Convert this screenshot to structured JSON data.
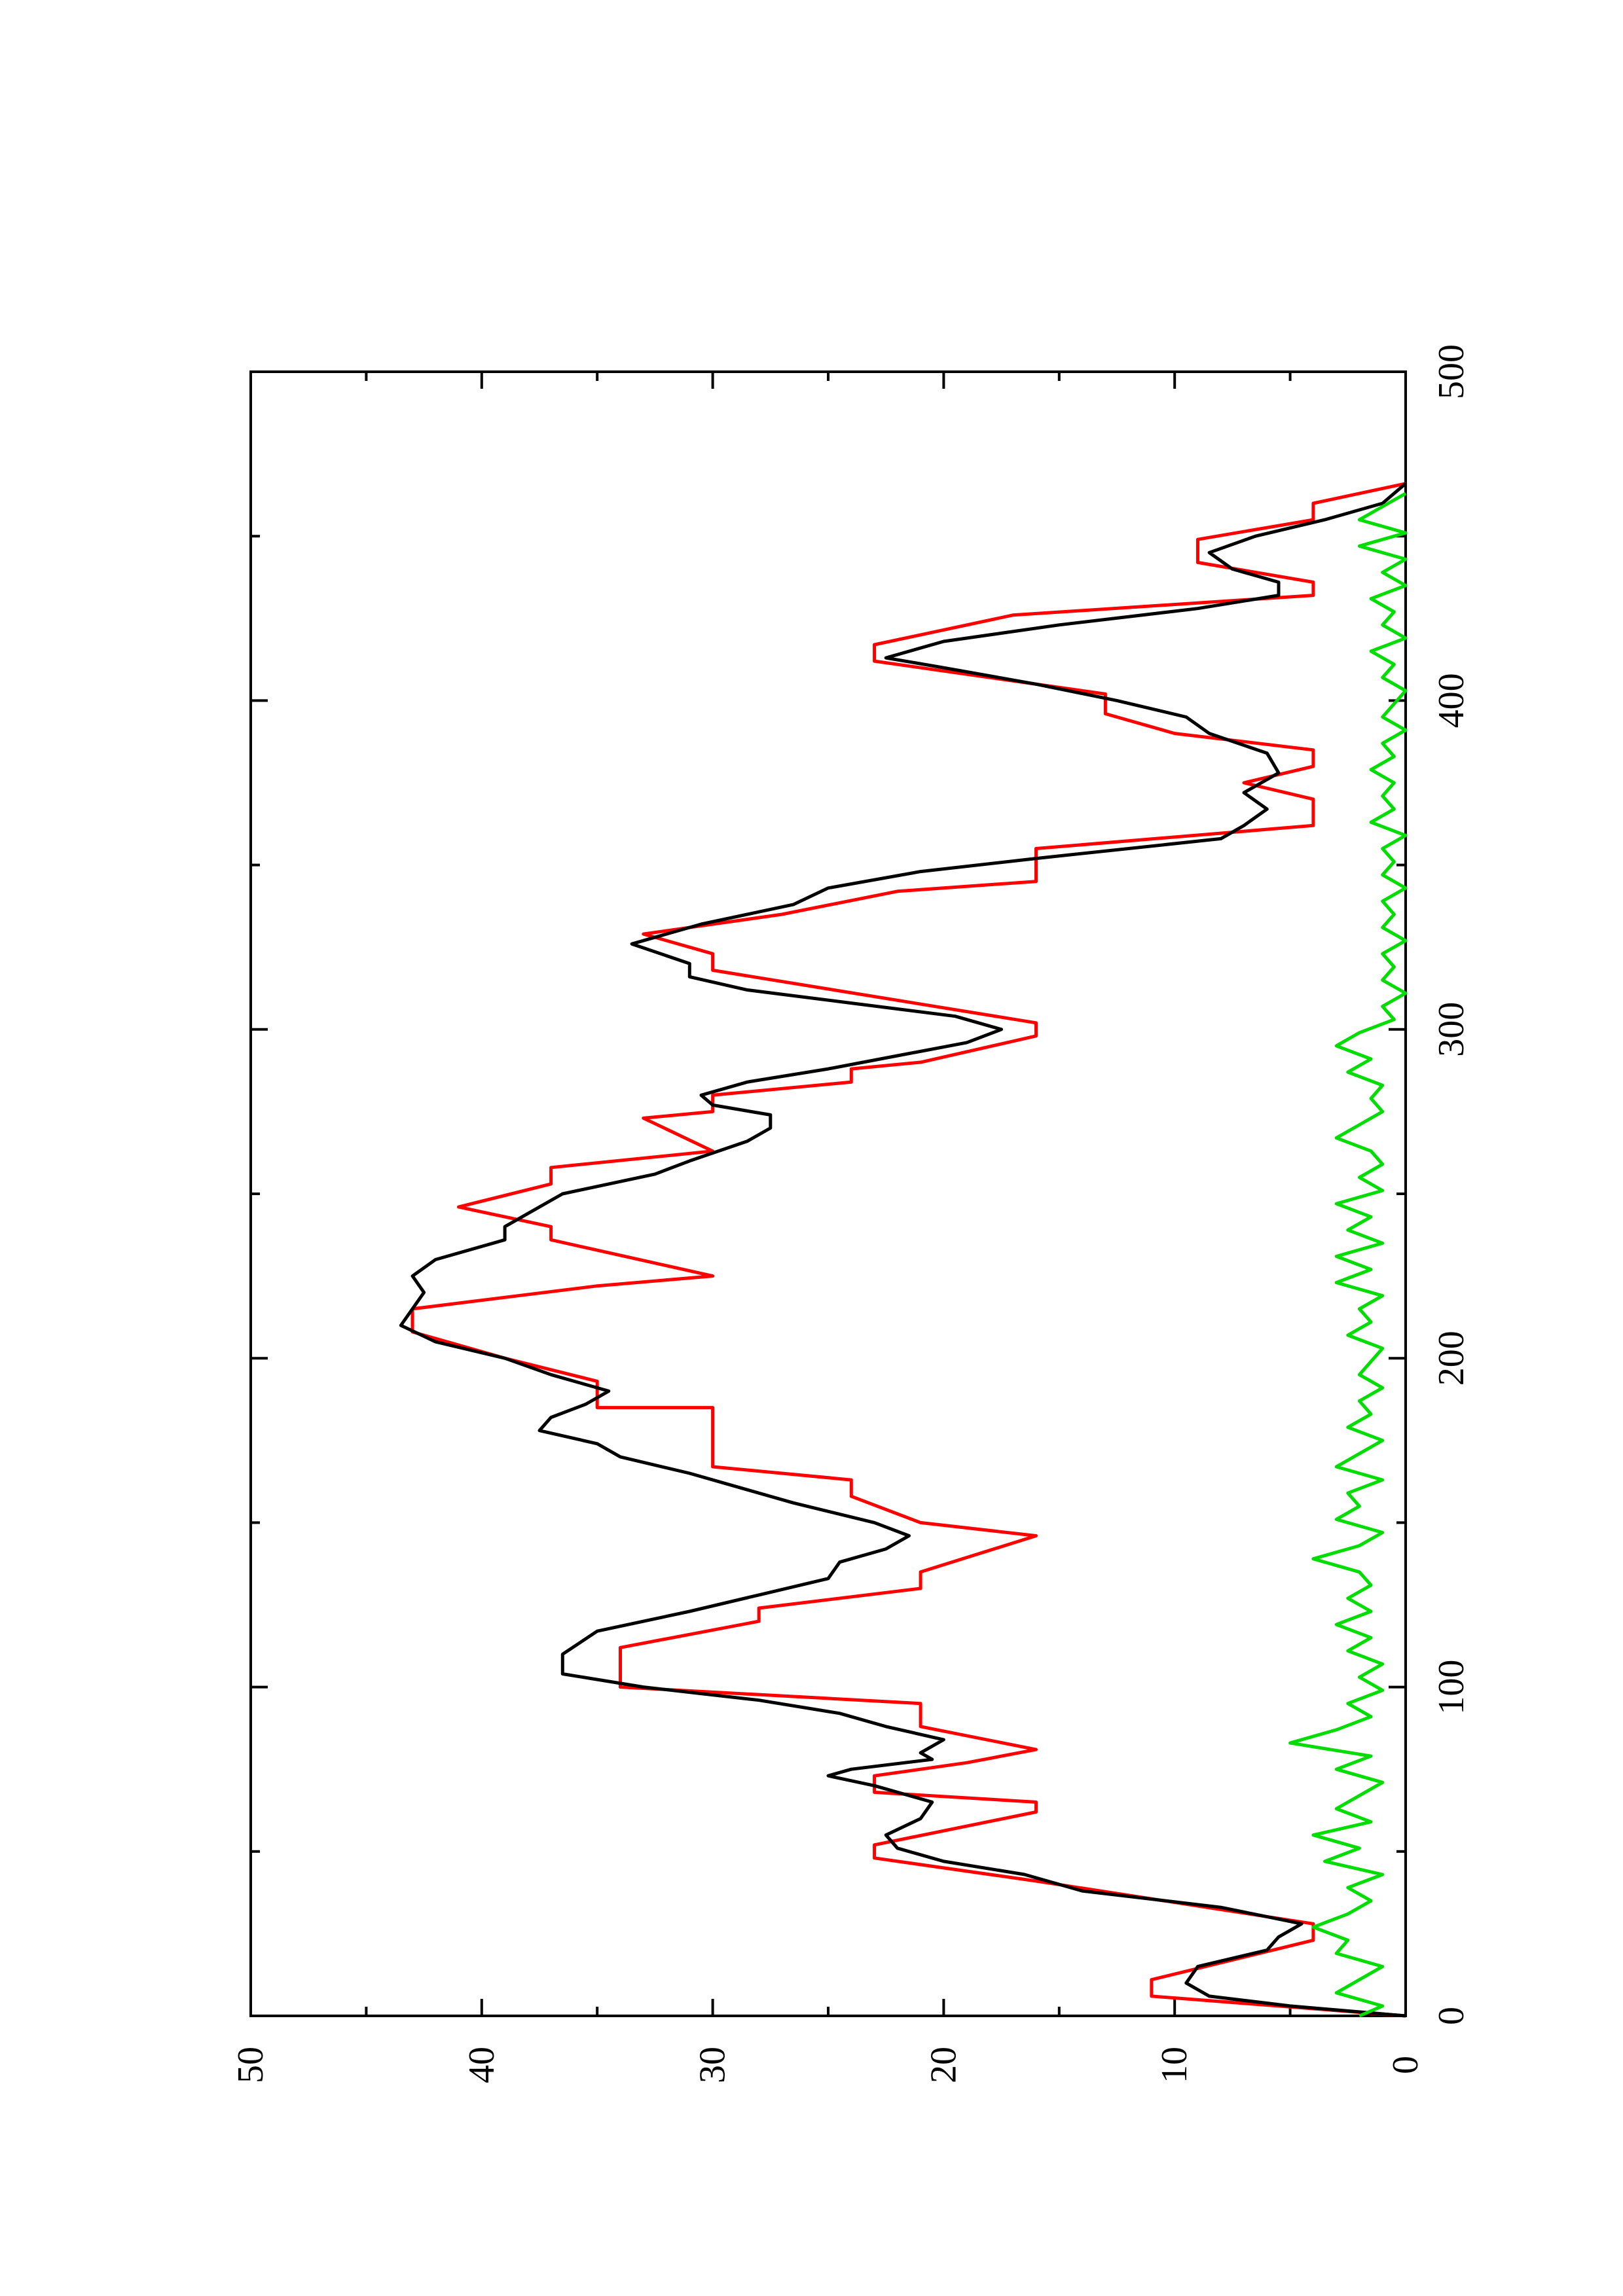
{
  "chart_data": {
    "type": "line",
    "title": "",
    "xlabel": "",
    "ylabel": "",
    "orientation": "rotated 90° counter-clockwise",
    "xlim": [
      0,
      500
    ],
    "ylim": [
      0,
      50
    ],
    "x_ticks": [
      0,
      100,
      200,
      300,
      400,
      500
    ],
    "y_ticks": [
      0,
      10,
      20,
      30,
      40,
      50
    ],
    "grid": false,
    "legend": "none",
    "series": [
      {
        "color": "#ff0000",
        "style": "step",
        "points": [
          [
            0,
            0
          ],
          [
            6,
            11
          ],
          [
            11,
            11
          ],
          [
            23,
            4
          ],
          [
            28,
            4
          ],
          [
            41,
            16
          ],
          [
            48,
            23
          ],
          [
            52,
            23
          ],
          [
            62,
            16
          ],
          [
            65,
            16
          ],
          [
            68,
            23
          ],
          [
            73,
            23
          ],
          [
            77,
            19
          ],
          [
            81,
            16
          ],
          [
            88,
            21
          ],
          [
            95,
            21
          ],
          [
            100,
            34
          ],
          [
            112,
            34
          ],
          [
            120,
            28
          ],
          [
            124,
            28
          ],
          [
            130,
            21
          ],
          [
            135,
            21
          ],
          [
            146,
            16
          ],
          [
            150,
            21
          ],
          [
            158,
            24
          ],
          [
            163,
            24
          ],
          [
            167,
            30
          ],
          [
            173,
            30
          ],
          [
            185,
            30
          ],
          [
            185,
            35
          ],
          [
            193,
            35
          ],
          [
            200,
            39
          ],
          [
            208,
            43
          ],
          [
            215,
            43
          ],
          [
            222,
            35
          ],
          [
            225,
            30
          ],
          [
            236,
            37
          ],
          [
            240,
            37
          ],
          [
            246,
            41
          ],
          [
            253,
            37
          ],
          [
            258,
            37
          ],
          [
            263,
            30
          ],
          [
            273,
            33
          ],
          [
            275,
            30
          ],
          [
            280,
            30
          ],
          [
            284,
            24
          ],
          [
            288,
            24
          ],
          [
            290,
            21
          ],
          [
            298,
            16
          ],
          [
            302,
            16
          ],
          [
            318,
            30
          ],
          [
            323,
            30
          ],
          [
            329,
            33
          ],
          [
            335,
            27
          ],
          [
            342,
            22
          ],
          [
            345,
            16
          ],
          [
            355,
            16
          ],
          [
            362,
            4
          ],
          [
            370,
            4
          ],
          [
            375,
            7
          ],
          [
            380,
            4
          ],
          [
            385,
            4
          ],
          [
            390,
            10
          ],
          [
            396,
            13
          ],
          [
            402,
            13
          ],
          [
            412,
            23
          ],
          [
            417,
            23
          ],
          [
            426,
            17
          ],
          [
            432,
            4
          ],
          [
            436,
            4
          ],
          [
            442,
            9
          ],
          [
            449,
            9
          ],
          [
            455,
            4
          ],
          [
            460,
            4
          ],
          [
            466,
            0
          ]
        ]
      },
      {
        "color": "#000000",
        "style": "line",
        "points": [
          [
            0,
            0
          ],
          [
            3,
            5
          ],
          [
            6,
            8.5
          ],
          [
            10,
            9.5
          ],
          [
            15,
            9
          ],
          [
            20,
            6
          ],
          [
            24,
            5.5
          ],
          [
            28,
            4.5
          ],
          [
            33,
            8
          ],
          [
            38,
            14
          ],
          [
            43,
            16.5
          ],
          [
            47,
            20
          ],
          [
            51,
            22
          ],
          [
            55,
            22.5
          ],
          [
            60,
            21
          ],
          [
            65,
            20.5
          ],
          [
            70,
            23
          ],
          [
            73,
            25
          ],
          [
            75,
            24
          ],
          [
            78,
            20.5
          ],
          [
            80,
            21
          ],
          [
            84,
            20
          ],
          [
            88,
            22.5
          ],
          [
            92,
            24.5
          ],
          [
            96,
            28
          ],
          [
            100,
            33
          ],
          [
            104,
            36.5
          ],
          [
            110,
            36.5
          ],
          [
            117,
            35
          ],
          [
            123,
            31
          ],
          [
            128,
            28
          ],
          [
            133,
            25
          ],
          [
            138,
            24.5
          ],
          [
            142,
            22.5
          ],
          [
            146,
            21.5
          ],
          [
            150,
            23
          ],
          [
            156,
            26.5
          ],
          [
            160,
            28.5
          ],
          [
            165,
            31
          ],
          [
            170,
            34
          ],
          [
            174,
            35
          ],
          [
            178,
            37.5
          ],
          [
            182,
            37
          ],
          [
            186,
            35.5
          ],
          [
            190,
            34.5
          ],
          [
            195,
            37
          ],
          [
            200,
            39
          ],
          [
            205,
            42
          ],
          [
            210,
            43.5
          ],
          [
            215,
            43
          ],
          [
            220,
            42.5
          ],
          [
            225,
            43
          ],
          [
            230,
            42
          ],
          [
            236,
            39
          ],
          [
            240,
            39
          ],
          [
            244,
            38
          ],
          [
            250,
            36.5
          ],
          [
            256,
            32.5
          ],
          [
            260,
            31
          ],
          [
            266,
            28.5
          ],
          [
            270,
            27.5
          ],
          [
            274,
            27.5
          ],
          [
            277,
            30
          ],
          [
            280,
            30.5
          ],
          [
            284,
            28.5
          ],
          [
            288,
            25
          ],
          [
            292,
            22
          ],
          [
            296,
            19
          ],
          [
            300,
            17.5
          ],
          [
            304,
            19.5
          ],
          [
            308,
            24
          ],
          [
            312,
            28.5
          ],
          [
            316,
            31
          ],
          [
            320,
            31
          ],
          [
            326,
            33.5
          ],
          [
            332,
            30.5
          ],
          [
            338,
            26.5
          ],
          [
            343,
            25
          ],
          [
            348,
            21
          ],
          [
            352,
            16
          ],
          [
            358,
            8
          ],
          [
            362,
            7
          ],
          [
            367,
            6
          ],
          [
            372,
            7
          ],
          [
            378,
            5.5
          ],
          [
            384,
            6
          ],
          [
            390,
            8.5
          ],
          [
            395,
            9.5
          ],
          [
            400,
            12.5
          ],
          [
            405,
            16
          ],
          [
            410,
            20
          ],
          [
            413,
            22.5
          ],
          [
            418,
            20
          ],
          [
            423,
            15
          ],
          [
            428,
            9
          ],
          [
            432,
            5.5
          ],
          [
            436,
            5.5
          ],
          [
            440,
            7.5
          ],
          [
            445,
            8.5
          ],
          [
            450,
            6.5
          ],
          [
            455,
            3.5
          ],
          [
            460,
            1
          ],
          [
            466,
            0
          ]
        ]
      },
      {
        "color": "#00dd00",
        "style": "line",
        "points": [
          [
            0,
            2
          ],
          [
            3,
            1
          ],
          [
            7,
            3
          ],
          [
            11,
            2
          ],
          [
            15,
            1
          ],
          [
            19,
            3
          ],
          [
            23,
            2.5
          ],
          [
            27,
            4
          ],
          [
            31,
            2.5
          ],
          [
            35,
            1.5
          ],
          [
            39,
            2.5
          ],
          [
            43,
            1
          ],
          [
            47,
            3.5
          ],
          [
            51,
            2
          ],
          [
            55,
            4
          ],
          [
            59,
            1.5
          ],
          [
            63,
            3
          ],
          [
            67,
            2
          ],
          [
            71,
            1
          ],
          [
            75,
            3
          ],
          [
            79,
            1.5
          ],
          [
            83,
            5
          ],
          [
            87,
            3
          ],
          [
            91,
            1.5
          ],
          [
            95,
            2.5
          ],
          [
            99,
            1
          ],
          [
            103,
            2
          ],
          [
            107,
            1
          ],
          [
            111,
            2.5
          ],
          [
            115,
            1.5
          ],
          [
            119,
            3
          ],
          [
            123,
            1.5
          ],
          [
            127,
            2.5
          ],
          [
            131,
            1.5
          ],
          [
            135,
            2
          ],
          [
            139,
            4
          ],
          [
            143,
            2
          ],
          [
            147,
            1
          ],
          [
            151,
            3
          ],
          [
            155,
            2
          ],
          [
            159,
            2.5
          ],
          [
            163,
            1
          ],
          [
            167,
            3
          ],
          [
            171,
            2
          ],
          [
            175,
            1
          ],
          [
            179,
            2.5
          ],
          [
            183,
            1.5
          ],
          [
            187,
            2
          ],
          [
            191,
            1
          ],
          [
            195,
            2
          ],
          [
            199,
            1.5
          ],
          [
            203,
            1
          ],
          [
            207,
            2.5
          ],
          [
            211,
            1.5
          ],
          [
            215,
            2
          ],
          [
            219,
            1
          ],
          [
            223,
            3
          ],
          [
            227,
            1.5
          ],
          [
            231,
            3
          ],
          [
            235,
            1
          ],
          [
            239,
            2.5
          ],
          [
            243,
            1.5
          ],
          [
            247,
            3
          ],
          [
            251,
            1
          ],
          [
            255,
            2
          ],
          [
            259,
            1
          ],
          [
            263,
            1.5
          ],
          [
            267,
            3
          ],
          [
            271,
            2
          ],
          [
            275,
            1
          ],
          [
            279,
            1.5
          ],
          [
            283,
            1
          ],
          [
            287,
            2.5
          ],
          [
            291,
            1.5
          ],
          [
            295,
            3
          ],
          [
            299,
            2
          ],
          [
            303,
            0.5
          ],
          [
            307,
            1
          ],
          [
            311,
            0
          ],
          [
            315,
            1
          ],
          [
            319,
            0.5
          ],
          [
            323,
            1
          ],
          [
            327,
            0
          ],
          [
            331,
            1
          ],
          [
            335,
            0.5
          ],
          [
            339,
            1
          ],
          [
            343,
            0
          ],
          [
            347,
            1
          ],
          [
            351,
            0.5
          ],
          [
            355,
            1
          ],
          [
            359,
            0
          ],
          [
            363,
            1.5
          ],
          [
            367,
            0.5
          ],
          [
            371,
            1
          ],
          [
            375,
            0.5
          ],
          [
            379,
            1.5
          ],
          [
            383,
            0.5
          ],
          [
            387,
            1
          ],
          [
            391,
            0
          ],
          [
            395,
            1
          ],
          [
            399,
            0.5
          ],
          [
            403,
            0
          ],
          [
            407,
            1
          ],
          [
            411,
            0.5
          ],
          [
            415,
            1.5
          ],
          [
            419,
            0
          ],
          [
            423,
            1
          ],
          [
            427,
            0.5
          ],
          [
            431,
            1.5
          ],
          [
            435,
            0
          ],
          [
            439,
            1
          ],
          [
            443,
            0
          ],
          [
            447,
            2
          ],
          [
            451,
            0
          ],
          [
            455,
            2
          ],
          [
            459,
            1
          ],
          [
            463,
            0
          ]
        ]
      }
    ]
  }
}
